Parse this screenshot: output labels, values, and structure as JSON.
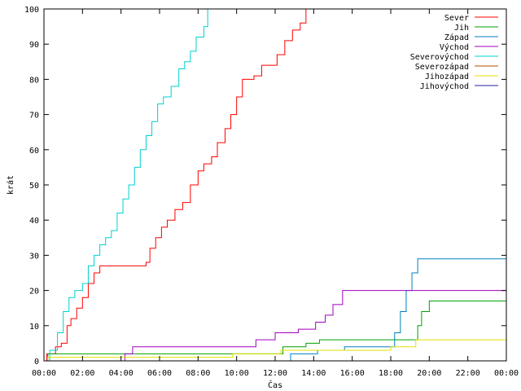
{
  "chart_data": {
    "type": "line",
    "title": "",
    "xlabel": "Čas",
    "ylabel": "krát",
    "xlim": [
      0,
      24
    ],
    "ylim": [
      0,
      100
    ],
    "x_ticks": [
      {
        "value": 0,
        "label": "00:00"
      },
      {
        "value": 2,
        "label": "02:00"
      },
      {
        "value": 4,
        "label": "04:00"
      },
      {
        "value": 6,
        "label": "06:00"
      },
      {
        "value": 8,
        "label": "08:00"
      },
      {
        "value": 10,
        "label": "10:00"
      },
      {
        "value": 12,
        "label": "12:00"
      },
      {
        "value": 14,
        "label": "14:00"
      },
      {
        "value": 16,
        "label": "16:00"
      },
      {
        "value": 18,
        "label": "18:00"
      },
      {
        "value": 20,
        "label": "20:00"
      },
      {
        "value": 22,
        "label": "22:00"
      },
      {
        "value": 24,
        "label": "00:00"
      }
    ],
    "y_ticks": [
      0,
      10,
      20,
      30,
      40,
      50,
      60,
      70,
      80,
      90,
      100
    ],
    "grid": false,
    "legend_position": "top-right",
    "series": [
      {
        "name": "Sever",
        "color": "#ff0000",
        "step": true,
        "x": [
          0,
          0.15,
          0.6,
          0.9,
          1.2,
          1.4,
          1.7,
          2.0,
          2.3,
          2.6,
          2.9,
          3.2,
          3.6,
          3.9,
          5.3,
          5.5,
          5.8,
          6.1,
          6.4,
          6.8,
          7.2,
          7.6,
          8.0,
          8.3,
          8.7,
          9.0,
          9.4,
          9.7,
          10.0,
          10.3,
          10.6,
          10.9,
          11.3,
          11.7,
          12.1,
          12.5,
          12.9,
          13.3,
          13.6
        ],
        "y": [
          0,
          2,
          4,
          5,
          10,
          12,
          15,
          18,
          22,
          25,
          27,
          27,
          27,
          27,
          28,
          32,
          35,
          38,
          40,
          43,
          45,
          50,
          54,
          56,
          58,
          62,
          66,
          70,
          75,
          80,
          80,
          81,
          84,
          84,
          87,
          91,
          94,
          96,
          100
        ]
      },
      {
        "name": "Jih",
        "color": "#00a000",
        "step": true,
        "x": [
          0,
          0.2,
          10.5,
          12.4,
          13.6,
          14.3,
          15.2,
          17.0,
          19.2,
          19.4,
          19.6,
          20.0,
          24.0
        ],
        "y": [
          0,
          2,
          2,
          4,
          5,
          6,
          6,
          6,
          6,
          10,
          14,
          17,
          17
        ]
      },
      {
        "name": "Západ",
        "color": "#0080c0",
        "step": true,
        "x": [
          0,
          12.8,
          14.2,
          15.6,
          17.8,
          18.2,
          18.5,
          18.8,
          19.1,
          19.4,
          24.0
        ],
        "y": [
          0,
          2,
          3,
          4,
          4,
          8,
          14,
          20,
          25,
          29,
          29
        ]
      },
      {
        "name": "Východ",
        "color": "#a000c0",
        "step": true,
        "x": [
          0,
          4.2,
          4.6,
          6.0,
          10.0,
          11.0,
          12.0,
          13.2,
          14.1,
          14.6,
          15.0,
          15.5,
          18.5,
          24.0
        ],
        "y": [
          0,
          2,
          4,
          4,
          4,
          6,
          8,
          9,
          11,
          13,
          16,
          20,
          20,
          20
        ]
      },
      {
        "name": "Severovýchod",
        "color": "#00d0d0",
        "step": true,
        "x": [
          0,
          0.3,
          0.7,
          1.0,
          1.3,
          1.6,
          2.0,
          2.3,
          2.6,
          2.9,
          3.2,
          3.5,
          3.8,
          4.1,
          4.4,
          4.7,
          5.0,
          5.3,
          5.6,
          5.9,
          6.2,
          6.6,
          7.0,
          7.3,
          7.6,
          7.9,
          8.3,
          8.5
        ],
        "y": [
          0,
          3,
          8,
          14,
          18,
          20,
          22,
          27,
          30,
          33,
          35,
          37,
          42,
          46,
          50,
          55,
          60,
          64,
          68,
          73,
          75,
          78,
          83,
          85,
          88,
          92,
          95,
          100
        ]
      },
      {
        "name": "Severozápad",
        "color": "#b05000",
        "step": true,
        "x": [
          0,
          24.0
        ],
        "y": [
          0,
          0
        ]
      },
      {
        "name": "Jihozápad",
        "color": "#e0e000",
        "step": true,
        "x": [
          0,
          0.2,
          9.8,
          12.3,
          18.0,
          19.3,
          23.9,
          24.0
        ],
        "y": [
          0,
          1,
          2,
          3,
          4,
          6,
          6,
          8
        ]
      },
      {
        "name": "Jihovýchod",
        "color": "#2020a0",
        "step": true,
        "x": [
          0,
          0.1,
          24.0
        ],
        "y": [
          0,
          0,
          0
        ]
      }
    ]
  }
}
